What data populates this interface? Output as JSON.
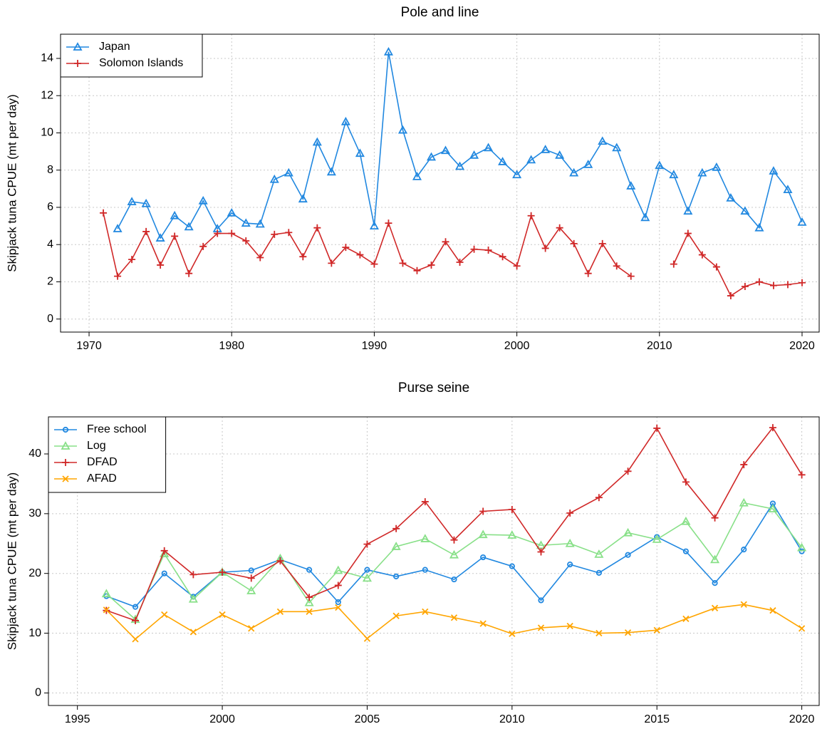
{
  "chart_data": [
    {
      "type": "line",
      "title": "Pole and line",
      "y_label": "Skipjack tuna CPUE (mt per day)",
      "x": [
        1971,
        1972,
        1973,
        1974,
        1975,
        1976,
        1977,
        1978,
        1979,
        1980,
        1981,
        1982,
        1983,
        1984,
        1985,
        1986,
        1987,
        1988,
        1989,
        1990,
        1991,
        1992,
        1993,
        1994,
        1995,
        1996,
        1997,
        1998,
        1999,
        2000,
        2001,
        2002,
        2003,
        2004,
        2005,
        2006,
        2007,
        2008,
        2009,
        2010,
        2011,
        2012,
        2013,
        2014,
        2015,
        2016,
        2017,
        2018,
        2019,
        2020
      ],
      "series": [
        {
          "name": "Japan",
          "color": "#2188e0",
          "marker": "triangle",
          "values": [
            null,
            4.85,
            6.3,
            6.2,
            4.35,
            5.55,
            4.95,
            6.35,
            4.85,
            5.7,
            5.15,
            5.1,
            7.5,
            7.85,
            6.45,
            9.5,
            7.9,
            10.6,
            8.9,
            5.0,
            14.35,
            10.15,
            7.65,
            8.7,
            9.05,
            8.2,
            8.8,
            9.2,
            8.45,
            7.75,
            8.55,
            9.1,
            8.8,
            7.85,
            8.3,
            9.55,
            9.2,
            7.15,
            5.45,
            8.25,
            7.75,
            5.8,
            7.85,
            8.15,
            6.5,
            5.8,
            4.9,
            7.95,
            6.95,
            5.2
          ]
        },
        {
          "name": "Solomon Islands",
          "color": "#d02828",
          "marker": "plus",
          "values": [
            5.7,
            2.3,
            3.2,
            4.7,
            2.9,
            4.45,
            2.45,
            3.9,
            4.6,
            4.6,
            4.2,
            3.3,
            4.55,
            4.65,
            3.35,
            4.9,
            3.0,
            3.85,
            3.45,
            2.95,
            5.15,
            3.0,
            2.6,
            2.9,
            4.15,
            3.05,
            3.75,
            3.7,
            3.35,
            2.85,
            5.55,
            3.8,
            4.9,
            4.05,
            2.45,
            4.05,
            2.85,
            2.3,
            null,
            null,
            2.95,
            4.6,
            3.45,
            2.8,
            1.25,
            1.75,
            2.0,
            1.8,
            1.85,
            1.95
          ]
        }
      ],
      "xlim": [
        1968,
        2021.2
      ],
      "xticks": [
        1970,
        1980,
        1990,
        2000,
        2010,
        2020
      ],
      "ylim": [
        -0.7,
        15.3
      ],
      "yticks": [
        0,
        2,
        4,
        6,
        8,
        10,
        12,
        14
      ],
      "grid": true,
      "legend": "top-left"
    },
    {
      "type": "line",
      "title": "Purse seine",
      "y_label": "Skipjack tuna CPUE (mt per day)",
      "x": [
        1996,
        1997,
        1998,
        1999,
        2000,
        2001,
        2002,
        2003,
        2004,
        2005,
        2006,
        2007,
        2008,
        2009,
        2010,
        2011,
        2012,
        2013,
        2014,
        2015,
        2016,
        2017,
        2018,
        2019,
        2020
      ],
      "series": [
        {
          "name": "Free school",
          "color": "#2188e0",
          "marker": "circle",
          "values": [
            16.2,
            14.4,
            20.0,
            16.1,
            20.2,
            20.5,
            22.3,
            20.6,
            15.2,
            20.6,
            19.5,
            20.6,
            19.0,
            22.7,
            21.2,
            15.5,
            21.5,
            20.1,
            23.1,
            26.1,
            23.7,
            18.4,
            24.0,
            31.7,
            23.7
          ]
        },
        {
          "name": "Log",
          "color": "#88e088",
          "marker": "triangle",
          "values": [
            16.6,
            12.3,
            23.3,
            15.7,
            20.2,
            17.1,
            22.5,
            15.1,
            20.5,
            19.2,
            24.5,
            25.8,
            23.1,
            26.5,
            26.4,
            24.7,
            25.0,
            23.2,
            26.8,
            25.7,
            28.7,
            22.3,
            31.8,
            30.8,
            24.3
          ]
        },
        {
          "name": "DFAD",
          "color": "#d02828",
          "marker": "plus",
          "values": [
            13.8,
            12.1,
            23.8,
            19.8,
            20.2,
            19.2,
            22.1,
            16.0,
            18.0,
            24.9,
            27.5,
            32.0,
            25.6,
            30.4,
            30.7,
            23.6,
            30.1,
            32.7,
            37.1,
            44.3,
            35.3,
            29.3,
            38.2,
            44.4,
            36.5
          ]
        },
        {
          "name": "AFAD",
          "color": "#ffa500",
          "marker": "x",
          "values": [
            13.9,
            9.0,
            13.1,
            10.2,
            13.1,
            10.8,
            13.6,
            13.6,
            14.3,
            9.1,
            12.9,
            13.6,
            12.6,
            11.6,
            9.9,
            10.9,
            11.2,
            10.0,
            10.1,
            10.5,
            12.4,
            14.2,
            14.8,
            13.8,
            10.8
          ]
        }
      ],
      "xlim": [
        1994,
        2020.6
      ],
      "xticks": [
        1995,
        2000,
        2005,
        2010,
        2015,
        2020
      ],
      "ylim": [
        -2.1,
        46.2
      ],
      "yticks": [
        0,
        10,
        20,
        30,
        40
      ],
      "grid": true,
      "legend": "top-left"
    }
  ]
}
